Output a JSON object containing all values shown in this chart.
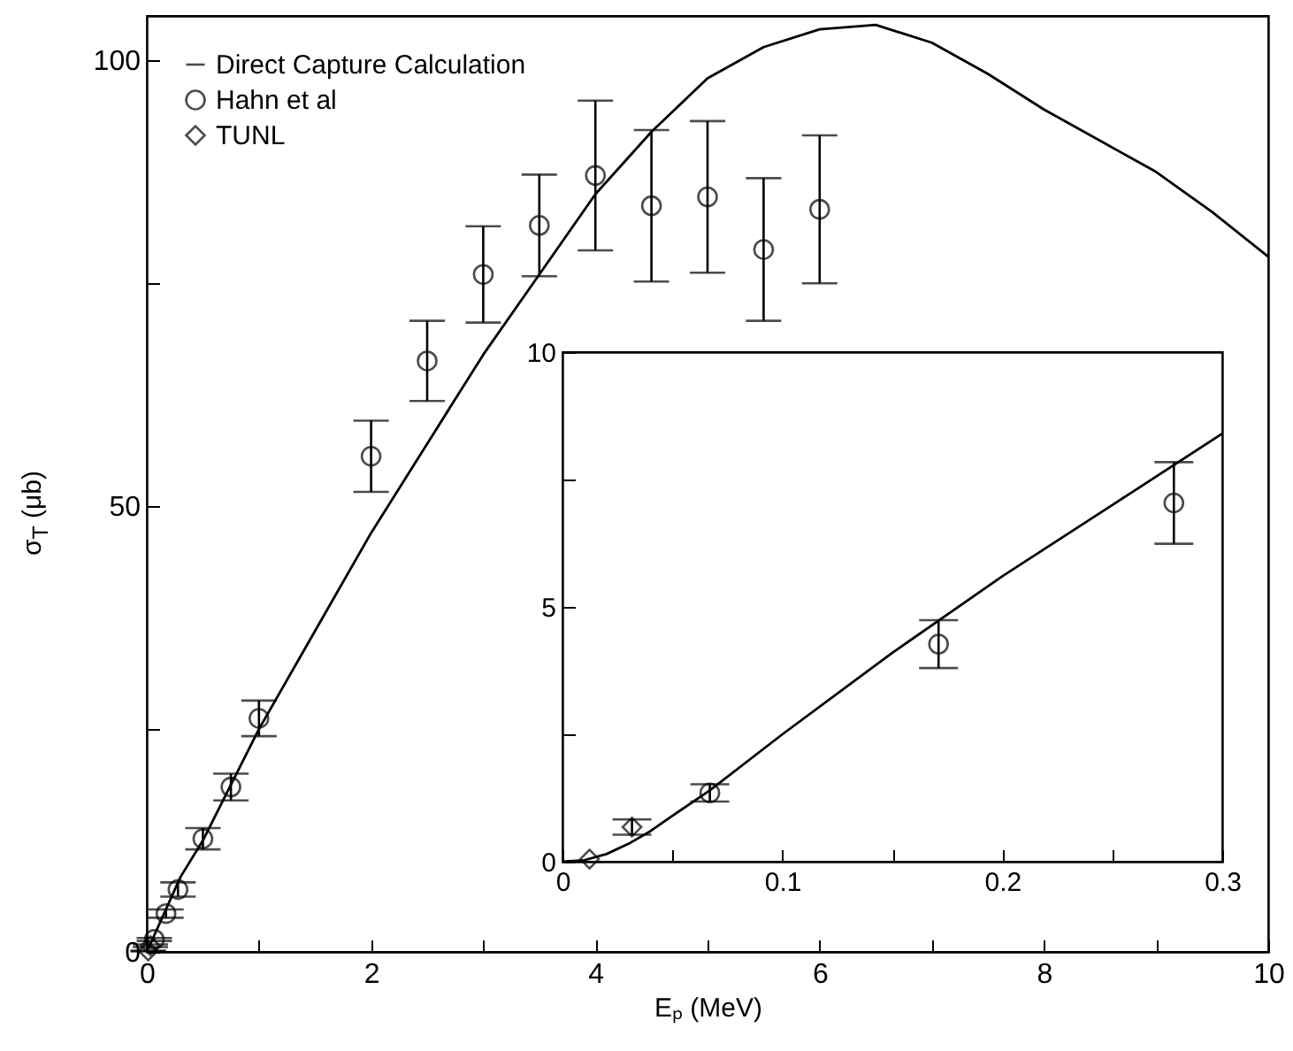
{
  "chart_data": [
    {
      "type": "scatter",
      "xlabel": "Eₚ (MeV)",
      "ylabel": "σ$_{T}$ (μb)",
      "xlim": [
        0,
        10
      ],
      "ylim": [
        0,
        105
      ],
      "xticks": [
        0,
        {
          "value": 1,
          "label": null
        },
        2,
        {
          "value": 3,
          "label": null
        },
        4,
        {
          "value": 5,
          "label": null
        },
        6,
        {
          "value": 7,
          "label": null
        },
        8,
        {
          "value": 9,
          "label": null
        },
        10
      ],
      "yticks": [
        0,
        {
          "value": 25,
          "label": null
        },
        50,
        {
          "value": 75,
          "label": null
        },
        100
      ],
      "legend": "top left",
      "grid": false,
      "series": [
        {
          "name": "Direct Capture Calculation",
          "type": "line",
          "color": "#000000",
          "line_style": "solid",
          "x": [
            0,
            0.3,
            0.5,
            1,
            1.5,
            2,
            2.5,
            3,
            3.5,
            4,
            4.5,
            5,
            5.5,
            6,
            6.5,
            7,
            7.5,
            8,
            8.5,
            9,
            9.5,
            10
          ],
          "values": [
            0,
            8.4,
            12.5,
            25,
            36,
            47,
            57,
            67,
            76,
            85,
            92,
            98,
            101.5,
            103.5,
            104,
            102,
            98.5,
            94.5,
            91,
            87.5,
            83,
            78
          ]
        },
        {
          "name": "Hahn et al",
          "marker": "circle",
          "color": "#000000",
          "x": [
            0.067,
            0.171,
            0.278,
            0.5,
            0.75,
            1,
            2,
            2.5,
            3,
            3.5,
            4,
            4.5,
            5,
            5.5,
            6
          ],
          "values": [
            1.4,
            4.3,
            7.0,
            12.7,
            18.5,
            26.2,
            55.6,
            66.3,
            76,
            81.5,
            87.1,
            83.7,
            84.7,
            78.8,
            83.3
          ],
          "errors": [
            0.17,
            0.47,
            0.8,
            1.2,
            1.5,
            2,
            4,
            4.5,
            5.4,
            5.7,
            8.4,
            8.5,
            8.5,
            8,
            8.3
          ]
        },
        {
          "name": "TUNL",
          "marker": "diamond",
          "color": "#000000",
          "x": [
            0.0123,
            0.0316
          ],
          "values": [
            0.1,
            0.7
          ],
          "errors": [
            0.04,
            0.15
          ]
        }
      ]
    },
    {
      "type": "scatter",
      "xlim": [
        0,
        0.3
      ],
      "ylim": [
        0,
        10
      ],
      "xticks": [
        0,
        {
          "value": 0.05,
          "label": null
        },
        0.1,
        {
          "value": 0.15,
          "label": null
        },
        0.2,
        {
          "value": 0.25,
          "label": null
        },
        0.3
      ],
      "yticks": [
        0,
        {
          "value": 2.5,
          "label": null
        },
        5,
        {
          "value": 7.5,
          "label": null
        },
        10
      ],
      "grid": false,
      "series": [
        {
          "type": "line",
          "color": "#000000",
          "line_style": "solid",
          "x": [
            0,
            0.01,
            0.02,
            0.03,
            0.04,
            0.05,
            0.067,
            0.1,
            0.15,
            0.2,
            0.25,
            0.3
          ],
          "values": [
            0,
            0.03,
            0.15,
            0.35,
            0.6,
            0.9,
            1.4,
            2.5,
            4.1,
            5.6,
            7.0,
            8.4
          ]
        },
        {
          "marker": "circle",
          "color": "#000000",
          "x": [
            0.067,
            0.171,
            0.278
          ],
          "values": [
            1.35,
            4.27,
            7.04
          ],
          "errors": [
            0.17,
            0.47,
            0.8
          ]
        },
        {
          "marker": "diamond",
          "color": "#000000",
          "x": [
            0.0123,
            0.0316
          ],
          "values": [
            0.05,
            0.68
          ],
          "errors": [
            null,
            0.15
          ]
        }
      ]
    }
  ]
}
